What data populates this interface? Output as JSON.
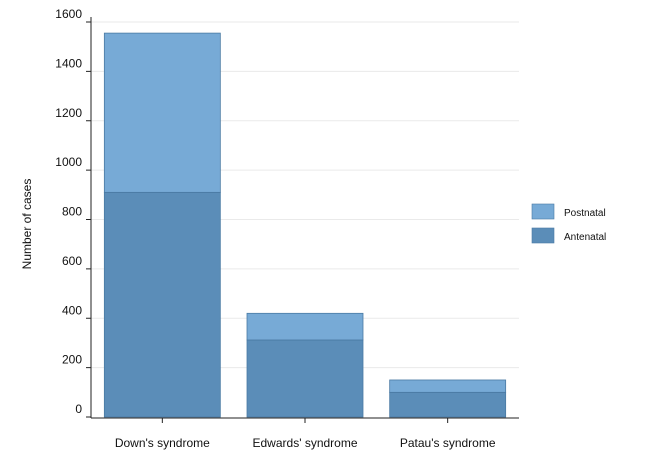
{
  "chart_data": {
    "type": "bar",
    "stacked": true,
    "categories": [
      "Down's syndrome",
      "Edwards' syndrome",
      "Patau's syndrome"
    ],
    "series": [
      {
        "name": "Antenatal",
        "values": [
          910,
          312,
          100
        ],
        "color": "#5b8db8"
      },
      {
        "name": "Postnatal",
        "values": [
          645,
          108,
          50
        ],
        "color": "#77aad6"
      }
    ],
    "xlabel": "",
    "ylabel": "Number of cases",
    "ylim": [
      0,
      1600
    ],
    "yticks": [
      0,
      200,
      400,
      600,
      800,
      1000,
      1200,
      1400,
      1600
    ],
    "grid": true,
    "legend_position": "right",
    "legend_order": [
      "Postnatal",
      "Antenatal"
    ]
  }
}
